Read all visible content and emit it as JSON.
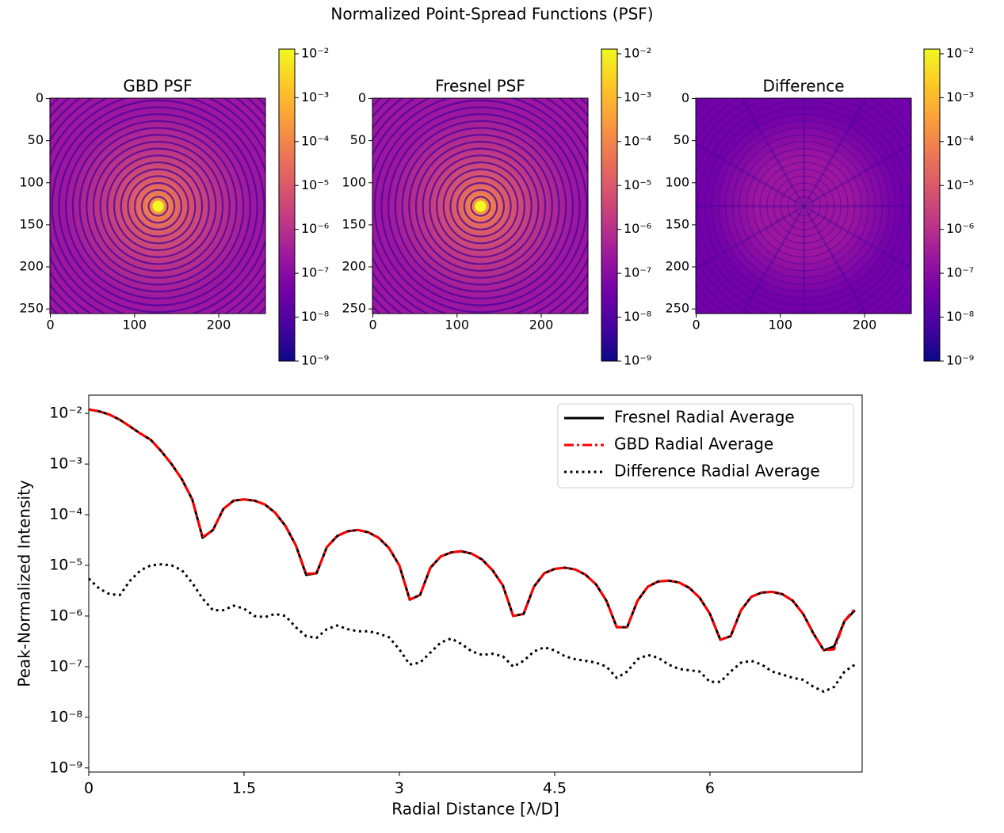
{
  "title": "Normalized Point-Spread Functions (PSF)",
  "chart_data": [
    {
      "type": "heatmap",
      "title": "GBD PSF",
      "xlim": [
        -0.5,
        255.5
      ],
      "ylim": [
        255.5,
        -0.5
      ],
      "xticks": [
        0,
        100,
        200
      ],
      "yticks": [
        0,
        50,
        100,
        150,
        200,
        250
      ],
      "colormap": [
        "#0d0887",
        "#46039f",
        "#7201a8",
        "#9c179e",
        "#bd3786",
        "#d8576b",
        "#ed7953",
        "#fb9f3a",
        "#fdca26",
        "#f0f921"
      ],
      "colorbar": {
        "log_scale": true,
        "lim": [
          1e-09,
          0.0128
        ],
        "ticks": [
          {
            "value": 1e-09,
            "label": "10⁻⁹"
          },
          {
            "value": 1e-08,
            "label": "10⁻⁸"
          },
          {
            "value": 1e-07,
            "label": "10⁻⁷"
          },
          {
            "value": 1e-06,
            "label": "10⁻⁶"
          },
          {
            "value": 1e-05,
            "label": "10⁻⁵"
          },
          {
            "value": 0.0001,
            "label": "10⁻⁴"
          },
          {
            "value": 0.001,
            "label": "10⁻³"
          },
          {
            "value": 0.01,
            "label": "10⁻²"
          }
        ]
      }
    },
    {
      "type": "heatmap",
      "title": "Fresnel PSF",
      "xlim": [
        -0.5,
        255.5
      ],
      "ylim": [
        255.5,
        -0.5
      ],
      "xticks": [
        0,
        100,
        200
      ],
      "yticks": [
        0,
        50,
        100,
        150,
        200,
        250
      ],
      "colormap": [
        "#0d0887",
        "#46039f",
        "#7201a8",
        "#9c179e",
        "#bd3786",
        "#d8576b",
        "#ed7953",
        "#fb9f3a",
        "#fdca26",
        "#f0f921"
      ],
      "colorbar": {
        "log_scale": true,
        "lim": [
          1e-09,
          0.0128
        ],
        "ticks": [
          {
            "value": 1e-09,
            "label": "10⁻⁹"
          },
          {
            "value": 1e-08,
            "label": "10⁻⁸"
          },
          {
            "value": 1e-07,
            "label": "10⁻⁷"
          },
          {
            "value": 1e-06,
            "label": "10⁻⁶"
          },
          {
            "value": 1e-05,
            "label": "10⁻⁵"
          },
          {
            "value": 0.0001,
            "label": "10⁻⁴"
          },
          {
            "value": 0.001,
            "label": "10⁻³"
          },
          {
            "value": 0.01,
            "label": "10⁻²"
          }
        ]
      }
    },
    {
      "type": "heatmap",
      "title": "Difference",
      "xlim": [
        -0.5,
        255.5
      ],
      "ylim": [
        255.5,
        -0.5
      ],
      "xticks": [
        0,
        100,
        200
      ],
      "yticks": [
        0,
        50,
        100,
        150,
        200,
        250
      ],
      "colormap": [
        "#0d0887",
        "#46039f",
        "#7201a8",
        "#9c179e",
        "#bd3786",
        "#d8576b",
        "#ed7953",
        "#fb9f3a",
        "#fdca26",
        "#f0f921"
      ],
      "colorbar": {
        "log_scale": true,
        "lim": [
          1e-09,
          0.0128
        ],
        "ticks": [
          {
            "value": 1e-09,
            "label": "10⁻⁹"
          },
          {
            "value": 1e-08,
            "label": "10⁻⁸"
          },
          {
            "value": 1e-07,
            "label": "10⁻⁷"
          },
          {
            "value": 1e-06,
            "label": "10⁻⁶"
          },
          {
            "value": 1e-05,
            "label": "10⁻⁵"
          },
          {
            "value": 0.0001,
            "label": "10⁻⁴"
          },
          {
            "value": 0.001,
            "label": "10⁻³"
          },
          {
            "value": 0.01,
            "label": "10⁻²"
          }
        ]
      }
    },
    {
      "type": "line",
      "x_label": "Radial Distance [λ/D]",
      "y_label": "Peak-Normalized Intensity",
      "log_y": true,
      "legend": "upper right",
      "xlim": [
        0,
        7.47
      ],
      "ylim": [
        8.3e-10,
        0.023
      ],
      "xticks": [
        0,
        1.5,
        3,
        4.5,
        6
      ],
      "yticks": [
        {
          "value": 1e-09,
          "label": "10⁻⁹"
        },
        {
          "value": 1e-08,
          "label": "10⁻⁸"
        },
        {
          "value": 1e-07,
          "label": "10⁻⁷"
        },
        {
          "value": 1e-06,
          "label": "10⁻⁶"
        },
        {
          "value": 1e-05,
          "label": "10⁻⁵"
        },
        {
          "value": 0.0001,
          "label": "10⁻⁴"
        },
        {
          "value": 0.001,
          "label": "10⁻³"
        },
        {
          "value": 0.01,
          "label": "10⁻²"
        }
      ],
      "x": [
        0,
        0.1,
        0.2,
        0.3,
        0.4,
        0.5,
        0.6,
        0.7,
        0.8,
        0.9,
        1.0,
        1.1,
        1.2,
        1.3,
        1.4,
        1.5,
        1.6,
        1.7,
        1.8,
        1.9,
        2.0,
        2.1,
        2.2,
        2.3,
        2.4,
        2.5,
        2.6,
        2.7,
        2.8,
        2.9,
        3.0,
        3.1,
        3.2,
        3.3,
        3.4,
        3.5,
        3.6,
        3.7,
        3.8,
        3.9,
        4.0,
        4.1,
        4.2,
        4.3,
        4.4,
        4.5,
        4.6,
        4.7,
        4.8,
        4.9,
        5.0,
        5.1,
        5.2,
        5.3,
        5.4,
        5.5,
        5.6,
        5.7,
        5.8,
        5.9,
        6.0,
        6.1,
        6.2,
        6.3,
        6.4,
        6.5,
        6.6,
        6.7,
        6.8,
        6.9,
        7.0,
        7.1,
        7.2,
        7.3,
        7.4
      ],
      "series": [
        {
          "name": "Fresnel Radial Average",
          "color": "#000000",
          "linestyle": "solid",
          "values": [
            0.012,
            0.011,
            0.0095,
            0.0075,
            0.0055,
            0.004,
            0.003,
            0.0018,
            0.001,
            0.0005,
            0.0002,
            3.5e-05,
            5e-05,
            0.00013,
            0.00019,
            0.0002,
            0.00019,
            0.00016,
            0.00011,
            6e-05,
            2.5e-05,
            6.5e-06,
            7e-06,
            2.3e-05,
            3.8e-05,
            4.7e-05,
            5e-05,
            4.5e-05,
            3.5e-05,
            2.2e-05,
            1e-05,
            2.1e-06,
            2.6e-06,
            9e-06,
            1.5e-05,
            1.8e-05,
            1.9e-05,
            1.7e-05,
            1.3e-05,
            8e-06,
            4e-06,
            1e-06,
            1.1e-06,
            3.8e-06,
            7e-06,
            8.5e-06,
            9e-06,
            8.3e-06,
            6.5e-06,
            4.2e-06,
            2e-06,
            6e-07,
            6e-07,
            2e-06,
            3.8e-06,
            4.8e-06,
            5e-06,
            4.6e-06,
            3.6e-06,
            2.3e-06,
            1.1e-06,
            3.4e-07,
            4e-07,
            1.3e-06,
            2.4e-06,
            2.9e-06,
            3e-06,
            2.7e-06,
            2e-06,
            1.1e-06,
            4.5e-07,
            2.1e-07,
            2.5e-07,
            8e-07,
            1.3e-06
          ]
        },
        {
          "name": "GBD Radial Average",
          "color": "#ff0000",
          "linestyle": "dashdot",
          "values": [
            0.012,
            0.011,
            0.0095,
            0.0075,
            0.0055,
            0.004,
            0.003,
            0.0018,
            0.001,
            0.0005,
            0.0002,
            3.6e-05,
            5e-05,
            0.00013,
            0.00019,
            0.0002,
            0.00019,
            0.00016,
            0.00011,
            6e-05,
            2.5e-05,
            6.8e-06,
            7e-06,
            2.3e-05,
            3.8e-05,
            4.7e-05,
            5e-05,
            4.5e-05,
            3.5e-05,
            2.2e-05,
            1e-05,
            2.1e-06,
            2.6e-06,
            9e-06,
            1.5e-05,
            1.8e-05,
            1.9e-05,
            1.7e-05,
            1.3e-05,
            8e-06,
            4e-06,
            1e-06,
            1.1e-06,
            3.8e-06,
            7e-06,
            8.5e-06,
            9e-06,
            8.3e-06,
            6.5e-06,
            4.2e-06,
            2e-06,
            6e-07,
            6e-07,
            2e-06,
            3.8e-06,
            4.8e-06,
            5e-06,
            4.6e-06,
            3.6e-06,
            2.3e-06,
            1.1e-06,
            3.4e-07,
            4e-07,
            1.3e-06,
            2.4e-06,
            2.9e-06,
            3e-06,
            2.7e-06,
            2e-06,
            1.1e-06,
            4.5e-07,
            2.1e-07,
            2.2e-07,
            8e-07,
            1.4e-06
          ]
        },
        {
          "name": "Difference Radial Average",
          "color": "#000000",
          "linestyle": "dotted",
          "values": [
            5.5e-06,
            3.5e-06,
            2.7e-06,
            2.6e-06,
            5e-06,
            8e-06,
            1e-05,
            1.05e-05,
            1e-05,
            8e-06,
            4.5e-06,
            2.2e-06,
            1.3e-06,
            1.3e-06,
            1.6e-06,
            1.4e-06,
            1e-06,
            9.5e-07,
            1.1e-06,
            1e-06,
            6e-07,
            4e-07,
            3.7e-07,
            5.5e-07,
            6.5e-07,
            5.5e-07,
            5e-07,
            5e-07,
            4.5e-07,
            3.8e-07,
            2.2e-07,
            1.1e-07,
            1.2e-07,
            1.9e-07,
            3e-07,
            3.6e-07,
            2.8e-07,
            2e-07,
            1.7e-07,
            1.8e-07,
            1.6e-07,
            1e-07,
            1.3e-07,
            2e-07,
            2.4e-07,
            2.1e-07,
            1.6e-07,
            1.4e-07,
            1.3e-07,
            1.2e-07,
            1e-07,
            6e-08,
            8e-08,
            1.4e-07,
            1.7e-07,
            1.5e-07,
            1.1e-07,
            9e-08,
            8.5e-08,
            8e-08,
            5e-08,
            5e-08,
            8e-08,
            1.2e-07,
            1.3e-07,
            1.1e-07,
            8e-08,
            7e-08,
            6e-08,
            5.5e-08,
            4e-08,
            3.2e-08,
            4e-08,
            8e-08,
            1.1e-07
          ]
        }
      ]
    }
  ]
}
